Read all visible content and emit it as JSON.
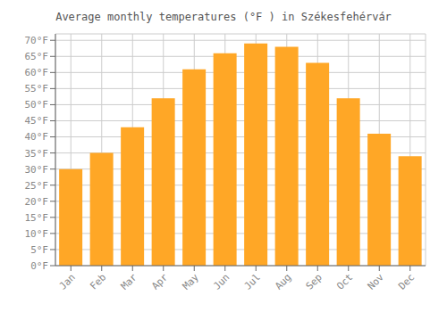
{
  "chart_data": {
    "type": "bar",
    "title": "Average monthly temperatures (°F ) in Székesfehérvár",
    "categories": [
      "Jan",
      "Feb",
      "Mar",
      "Apr",
      "May",
      "Jun",
      "Jul",
      "Aug",
      "Sep",
      "Oct",
      "Nov",
      "Dec"
    ],
    "values": [
      30,
      35,
      43,
      52,
      61,
      66,
      69,
      68,
      63,
      52,
      41,
      34
    ],
    "color": "#FFA726",
    "ylim": [
      0,
      72
    ],
    "yticks": [
      {
        "value": 0,
        "label": "0°F"
      },
      {
        "value": 5,
        "label": "5°F"
      },
      {
        "value": 10,
        "label": "10°F"
      },
      {
        "value": 15,
        "label": "15°F"
      },
      {
        "value": 20,
        "label": "20°F"
      },
      {
        "value": 25,
        "label": "25°F"
      },
      {
        "value": 30,
        "label": "30°F"
      },
      {
        "value": 35,
        "label": "35°F"
      },
      {
        "value": 40,
        "label": "40°F"
      },
      {
        "value": 45,
        "label": "45°F"
      },
      {
        "value": 50,
        "label": "50°F"
      },
      {
        "value": 55,
        "label": "55°F"
      },
      {
        "value": 60,
        "label": "60°F"
      },
      {
        "value": 65,
        "label": "65°F"
      },
      {
        "value": 70,
        "label": "70°F"
      }
    ],
    "grid": true
  }
}
